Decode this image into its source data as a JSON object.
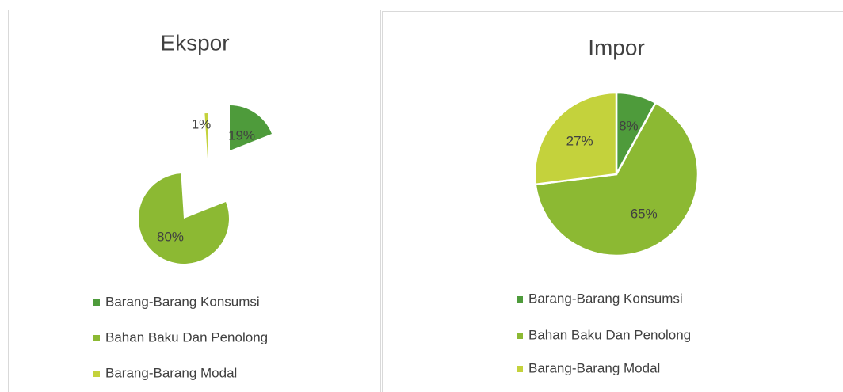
{
  "chart_data": [
    {
      "type": "pie",
      "title": "Ekspor",
      "categories": [
        "Barang-Barang Konsumsi",
        "Bahan Baku Dan Penolong",
        "Barang-Barang Modal"
      ],
      "values": [
        19,
        80,
        1
      ],
      "value_labels": [
        "19%",
        "80%",
        "1%"
      ],
      "colors": [
        "#4e9b3b",
        "#8cb933",
        "#c4d23c"
      ],
      "legend": "bottom",
      "exploded": true
    },
    {
      "type": "pie",
      "title": "Impor",
      "categories": [
        "Barang-Barang Konsumsi",
        "Bahan Baku Dan Penolong",
        "Barang-Barang Modal"
      ],
      "values": [
        8,
        65,
        27
      ],
      "value_labels": [
        "8%",
        "65%",
        "27%"
      ],
      "colors": [
        "#4e9b3b",
        "#8cb933",
        "#c4d23c"
      ],
      "legend": "bottom",
      "exploded": false
    }
  ]
}
